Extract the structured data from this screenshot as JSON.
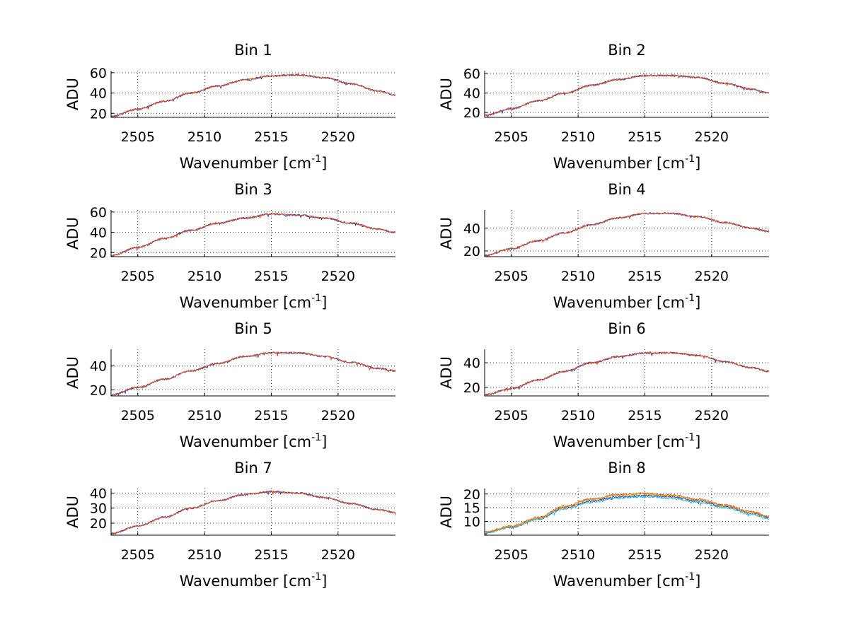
{
  "chart_data": [
    {
      "type": "line",
      "title": "Bin 1",
      "xlabel": "Wavenumber [cm",
      "xlabel_sup": "-1",
      "xlabel_close": "]",
      "ylabel": "ADU",
      "xlim": [
        2503.0,
        2524.3
      ],
      "ylim": [
        16,
        62
      ],
      "xticks": [
        2505,
        2510,
        2515,
        2520
      ],
      "yticks": [
        20,
        40,
        60
      ],
      "grid": true,
      "series": [
        {
          "name": "series-1",
          "color": "#1f3fbf",
          "x": [
            2503.0,
            2505,
            2507,
            2509,
            2511,
            2513,
            2515,
            2517,
            2519,
            2521,
            2523,
            2524.3
          ],
          "y": [
            17,
            24,
            32,
            40,
            47,
            53,
            57,
            58,
            55,
            49,
            42,
            38
          ]
        },
        {
          "name": "series-2",
          "color": "#e04a1b",
          "x": [
            2503.0,
            2505,
            2507,
            2509,
            2511,
            2513,
            2515,
            2517,
            2519,
            2521,
            2523,
            2524.3
          ],
          "y": [
            17,
            24,
            32,
            40,
            47,
            53,
            57,
            58,
            55,
            49,
            42,
            38
          ]
        }
      ]
    },
    {
      "type": "line",
      "title": "Bin 2",
      "xlabel": "Wavenumber [cm",
      "xlabel_sup": "-1",
      "xlabel_close": "]",
      "ylabel": "ADU",
      "xlim": [
        2503.0,
        2524.3
      ],
      "ylim": [
        15,
        63
      ],
      "xticks": [
        2505,
        2510,
        2515,
        2520
      ],
      "yticks": [
        20,
        40,
        60
      ],
      "grid": true,
      "series": [
        {
          "name": "series-1",
          "color": "#1f3fbf",
          "x": [
            2503.0,
            2505,
            2507,
            2509,
            2511,
            2513,
            2515,
            2517,
            2519,
            2521,
            2523,
            2524.3
          ],
          "y": [
            17,
            24,
            32,
            40,
            48,
            54,
            58,
            58,
            56,
            50,
            44,
            40
          ]
        },
        {
          "name": "series-2",
          "color": "#e04a1b",
          "x": [
            2503.0,
            2505,
            2507,
            2509,
            2511,
            2513,
            2515,
            2517,
            2519,
            2521,
            2523,
            2524.3
          ],
          "y": [
            17,
            24,
            32,
            40,
            48,
            54,
            58,
            58,
            56,
            50,
            44,
            40
          ]
        }
      ]
    },
    {
      "type": "line",
      "title": "Bin 3",
      "xlabel": "Wavenumber [cm",
      "xlabel_sup": "-1",
      "xlabel_close": "]",
      "ylabel": "ADU",
      "xlim": [
        2503.0,
        2524.3
      ],
      "ylim": [
        16,
        62
      ],
      "xticks": [
        2505,
        2510,
        2515,
        2520
      ],
      "yticks": [
        20,
        40,
        60
      ],
      "grid": true,
      "series": [
        {
          "name": "series-1",
          "color": "#1f3fbf",
          "x": [
            2503.0,
            2505,
            2507,
            2509,
            2511,
            2513,
            2515,
            2517,
            2519,
            2521,
            2523,
            2524.3
          ],
          "y": [
            17,
            25,
            34,
            42,
            49,
            54,
            58,
            57,
            54,
            49,
            43,
            40
          ]
        },
        {
          "name": "series-2",
          "color": "#e04a1b",
          "x": [
            2503.0,
            2505,
            2507,
            2509,
            2511,
            2513,
            2515,
            2517,
            2519,
            2521,
            2523,
            2524.3
          ],
          "y": [
            17,
            25,
            34,
            42,
            49,
            54,
            58,
            57,
            54,
            49,
            43,
            40
          ]
        }
      ]
    },
    {
      "type": "line",
      "title": "Bin 4",
      "xlabel": "Wavenumber [cm",
      "xlabel_sup": "-1",
      "xlabel_close": "]",
      "ylabel": "ADU",
      "xlim": [
        2503.0,
        2524.3
      ],
      "ylim": [
        15,
        56
      ],
      "xticks": [
        2505,
        2510,
        2515,
        2520
      ],
      "yticks": [
        20,
        40
      ],
      "grid": true,
      "series": [
        {
          "name": "series-1",
          "color": "#1f3fbf",
          "x": [
            2503.0,
            2505,
            2507,
            2509,
            2511,
            2513,
            2515,
            2517,
            2519,
            2521,
            2523,
            2524.3
          ],
          "y": [
            16,
            22,
            29,
            36,
            43,
            49,
            53,
            53,
            50,
            45,
            40,
            37
          ]
        },
        {
          "name": "series-2",
          "color": "#e04a1b",
          "x": [
            2503.0,
            2505,
            2507,
            2509,
            2511,
            2513,
            2515,
            2517,
            2519,
            2521,
            2523,
            2524.3
          ],
          "y": [
            16,
            22,
            29,
            36,
            43,
            49,
            53,
            53,
            50,
            45,
            40,
            37
          ]
        }
      ]
    },
    {
      "type": "line",
      "title": "Bin 5",
      "xlabel": "Wavenumber [cm",
      "xlabel_sup": "-1",
      "xlabel_close": "]",
      "ylabel": "ADU",
      "xlim": [
        2503.0,
        2524.3
      ],
      "ylim": [
        15,
        54
      ],
      "xticks": [
        2505,
        2510,
        2515,
        2520
      ],
      "yticks": [
        20,
        40
      ],
      "grid": true,
      "series": [
        {
          "name": "series-1",
          "color": "#1f3fbf",
          "x": [
            2503.0,
            2505,
            2507,
            2509,
            2511,
            2513,
            2515,
            2517,
            2519,
            2521,
            2523,
            2524.3
          ],
          "y": [
            16,
            22,
            29,
            36,
            42,
            48,
            51,
            51,
            48,
            43,
            38,
            36
          ]
        },
        {
          "name": "series-2",
          "color": "#e04a1b",
          "x": [
            2503.0,
            2505,
            2507,
            2509,
            2511,
            2513,
            2515,
            2517,
            2519,
            2521,
            2523,
            2524.3
          ],
          "y": [
            16,
            22,
            29,
            36,
            42,
            48,
            51,
            51,
            48,
            43,
            38,
            36
          ]
        }
      ]
    },
    {
      "type": "line",
      "title": "Bin 6",
      "xlabel": "Wavenumber [cm",
      "xlabel_sup": "-1",
      "xlabel_close": "]",
      "ylabel": "ADU",
      "xlim": [
        2503.0,
        2524.3
      ],
      "ylim": [
        13,
        51
      ],
      "xticks": [
        2505,
        2510,
        2515,
        2520
      ],
      "yticks": [
        20,
        40
      ],
      "grid": true,
      "series": [
        {
          "name": "series-1",
          "color": "#1f3fbf",
          "x": [
            2503.0,
            2505,
            2507,
            2509,
            2511,
            2513,
            2515,
            2517,
            2519,
            2521,
            2523,
            2524.3
          ],
          "y": [
            14,
            19,
            26,
            33,
            40,
            45,
            48,
            48,
            46,
            41,
            36,
            33
          ]
        },
        {
          "name": "series-2",
          "color": "#e04a1b",
          "x": [
            2503.0,
            2505,
            2507,
            2509,
            2511,
            2513,
            2515,
            2517,
            2519,
            2521,
            2523,
            2524.3
          ],
          "y": [
            14,
            19,
            26,
            33,
            40,
            45,
            48,
            48,
            46,
            41,
            36,
            33
          ]
        }
      ]
    },
    {
      "type": "line",
      "title": "Bin 7",
      "xlabel": "Wavenumber [cm",
      "xlabel_sup": "-1",
      "xlabel_close": "]",
      "ylabel": "ADU",
      "xlim": [
        2503.0,
        2524.3
      ],
      "ylim": [
        12,
        43
      ],
      "xticks": [
        2505,
        2510,
        2515,
        2520
      ],
      "yticks": [
        20,
        30,
        40
      ],
      "grid": true,
      "series": [
        {
          "name": "series-1",
          "color": "#1f3fbf",
          "x": [
            2503.0,
            2505,
            2507,
            2509,
            2511,
            2513,
            2515,
            2517,
            2519,
            2521,
            2523,
            2524.3
          ],
          "y": [
            13,
            18,
            24,
            30,
            35,
            39,
            41,
            40,
            37,
            33,
            29,
            27
          ]
        },
        {
          "name": "series-2",
          "color": "#e04a1b",
          "x": [
            2503.0,
            2505,
            2507,
            2509,
            2511,
            2513,
            2515,
            2517,
            2519,
            2521,
            2523,
            2524.3
          ],
          "y": [
            13,
            18,
            24,
            30,
            35,
            39,
            41,
            40,
            37,
            33,
            29,
            27
          ]
        }
      ]
    },
    {
      "type": "line",
      "title": "Bin 8",
      "xlabel": "Wavenumber [cm",
      "xlabel_sup": "-1",
      "xlabel_close": "]",
      "ylabel": "ADU",
      "xlim": [
        2503.0,
        2524.3
      ],
      "ylim": [
        5,
        22
      ],
      "xticks": [
        2505,
        2510,
        2515,
        2520
      ],
      "yticks": [
        10,
        15,
        20
      ],
      "grid": true,
      "series": [
        {
          "name": "series-1",
          "color": "#1f3fbf",
          "x": [
            2503.0,
            2505,
            2507,
            2509,
            2511,
            2513,
            2515,
            2517,
            2519,
            2521,
            2523,
            2524.3
          ],
          "y": [
            6,
            8,
            11,
            15,
            17.5,
            19,
            19.5,
            19,
            17.5,
            15.5,
            13,
            11.5
          ]
        },
        {
          "name": "series-2",
          "color": "#e04a1b",
          "x": [
            2503.0,
            2505,
            2507,
            2509,
            2511,
            2513,
            2515,
            2517,
            2519,
            2521,
            2523,
            2524.3
          ],
          "y": [
            6.2,
            8.3,
            11.4,
            15.6,
            18.2,
            19.8,
            20.2,
            19.6,
            18.1,
            16,
            13.6,
            12
          ]
        },
        {
          "name": "series-3",
          "color": "#2fb3c9",
          "x": [
            2503.0,
            2505,
            2507,
            2509,
            2511,
            2513,
            2515,
            2517,
            2519,
            2521,
            2523,
            2524.3
          ],
          "y": [
            5.8,
            7.8,
            10.8,
            14.6,
            17,
            18.5,
            19,
            18.5,
            17,
            15,
            12.6,
            11
          ]
        },
        {
          "name": "series-4",
          "color": "#d9a21b",
          "x": [
            2503.0,
            2505,
            2507,
            2509,
            2511,
            2513,
            2515,
            2517,
            2519,
            2521,
            2523,
            2524.3
          ],
          "y": [
            6.1,
            8.1,
            11.2,
            15.3,
            18,
            19.5,
            20,
            19.4,
            17.8,
            15.8,
            13.3,
            11.8
          ]
        }
      ]
    }
  ]
}
